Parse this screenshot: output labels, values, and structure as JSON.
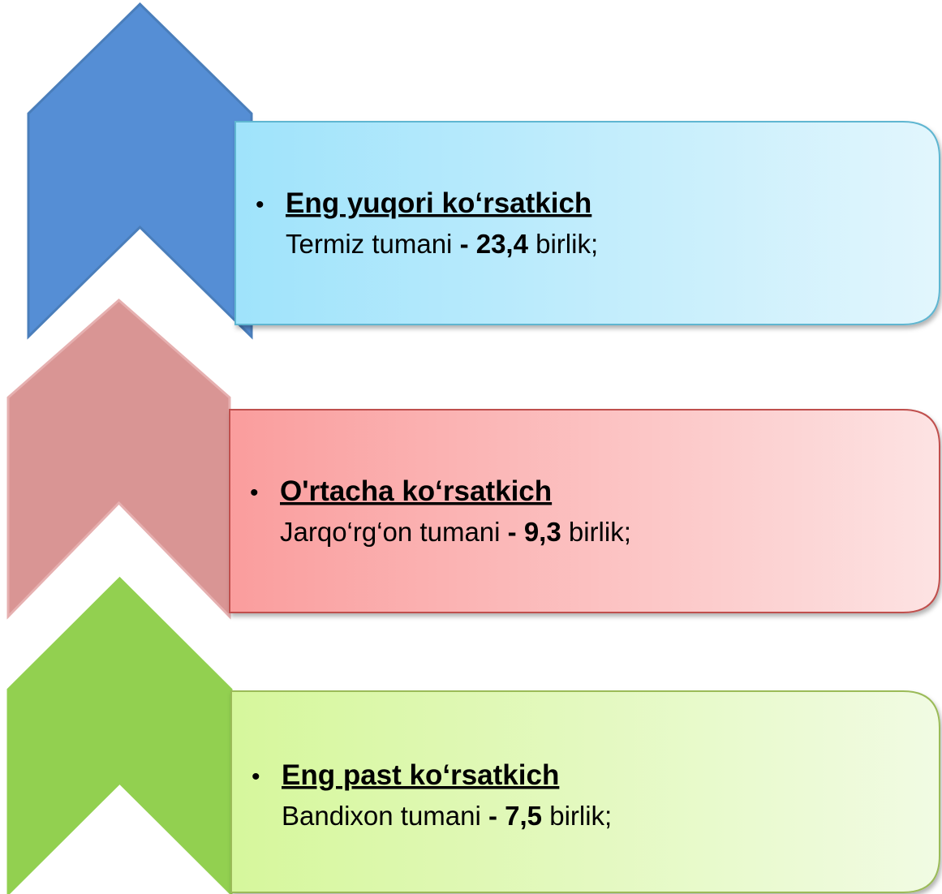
{
  "items": [
    {
      "heading": "Eng yuqori ko‘rsatkich",
      "line": "Termiz  tumani",
      "value": "- 23,4",
      "unit": "birlik;"
    },
    {
      "heading": "O'rtacha ko‘rsatkich",
      "line": "Jarqo‘rg‘on  tumani",
      "value": "- 9,3",
      "unit": "birlik;"
    },
    {
      "heading": "Eng past ko‘rsatkich",
      "line": "Bandixon tumani",
      "value": "- 7,5",
      "unit": "birlik;"
    }
  ]
}
